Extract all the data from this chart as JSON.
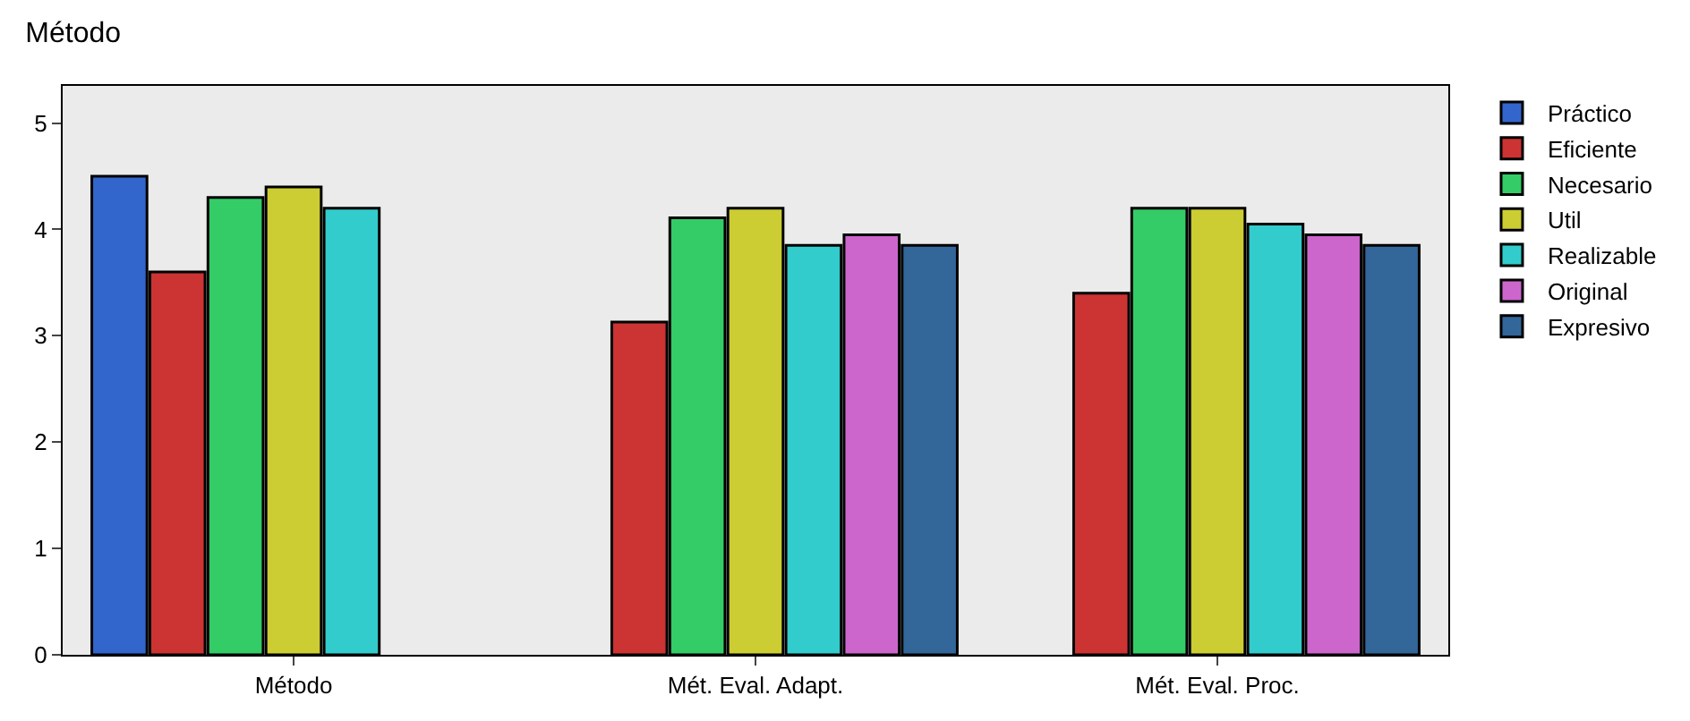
{
  "chart_data": {
    "type": "bar",
    "title": "Método",
    "categories": [
      "Método",
      "Mét. Eval. Adapt.",
      "Mét. Eval. Proc."
    ],
    "series": [
      {
        "name": "Práctico",
        "color": "#3366cc",
        "values": [
          4.5,
          null,
          null
        ]
      },
      {
        "name": "Eficiente",
        "color": "#cc3333",
        "values": [
          3.6,
          3.13,
          3.4
        ]
      },
      {
        "name": "Necesario",
        "color": "#33cc66",
        "values": [
          4.3,
          4.11,
          4.2
        ]
      },
      {
        "name": "Util",
        "color": "#cccc33",
        "values": [
          4.4,
          4.2,
          4.2
        ]
      },
      {
        "name": "Realizable",
        "color": "#33cccc",
        "values": [
          4.2,
          3.85,
          4.05
        ]
      },
      {
        "name": "Original",
        "color": "#cc66cc",
        "values": [
          null,
          3.95,
          3.95
        ]
      },
      {
        "name": "Expresivo",
        "color": "#336699",
        "values": [
          null,
          3.85,
          3.85
        ]
      }
    ],
    "ylim": [
      0,
      5.35
    ],
    "yticks": [
      0,
      1,
      2,
      3,
      4,
      5
    ],
    "grid": false,
    "legend": "top right"
  }
}
